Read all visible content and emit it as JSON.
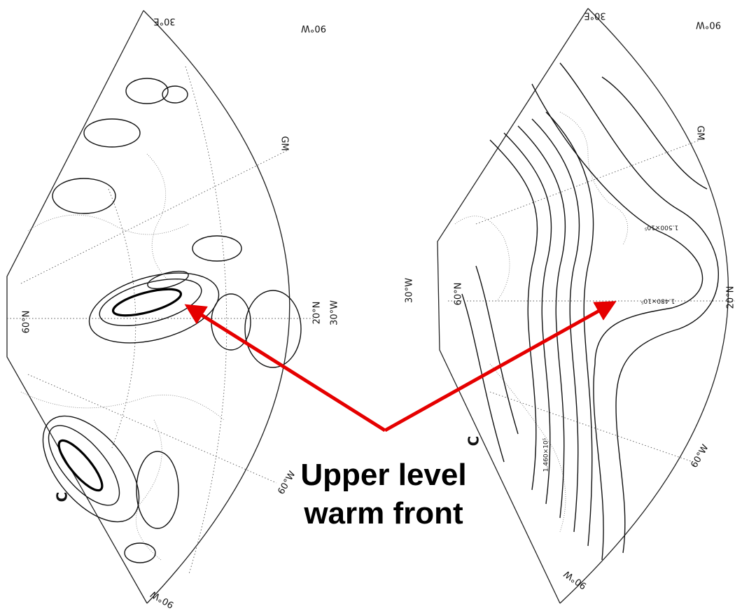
{
  "annotation": {
    "lines": [
      "Upper level",
      "warm front"
    ]
  },
  "panels": [
    {
      "labels": [
        "30°E",
        "90°W",
        "GM",
        "60°N",
        "20°N",
        "30°W",
        "60°W",
        "C",
        "90°W"
      ]
    },
    {
      "labels": [
        "30°E",
        "90°W",
        "GM",
        "30°W",
        "60°N",
        "20°N",
        "60°W",
        "C",
        "90°W",
        "1.480×10⁵",
        "1.500×10⁵",
        "1.460×10⁵"
      ]
    }
  ]
}
